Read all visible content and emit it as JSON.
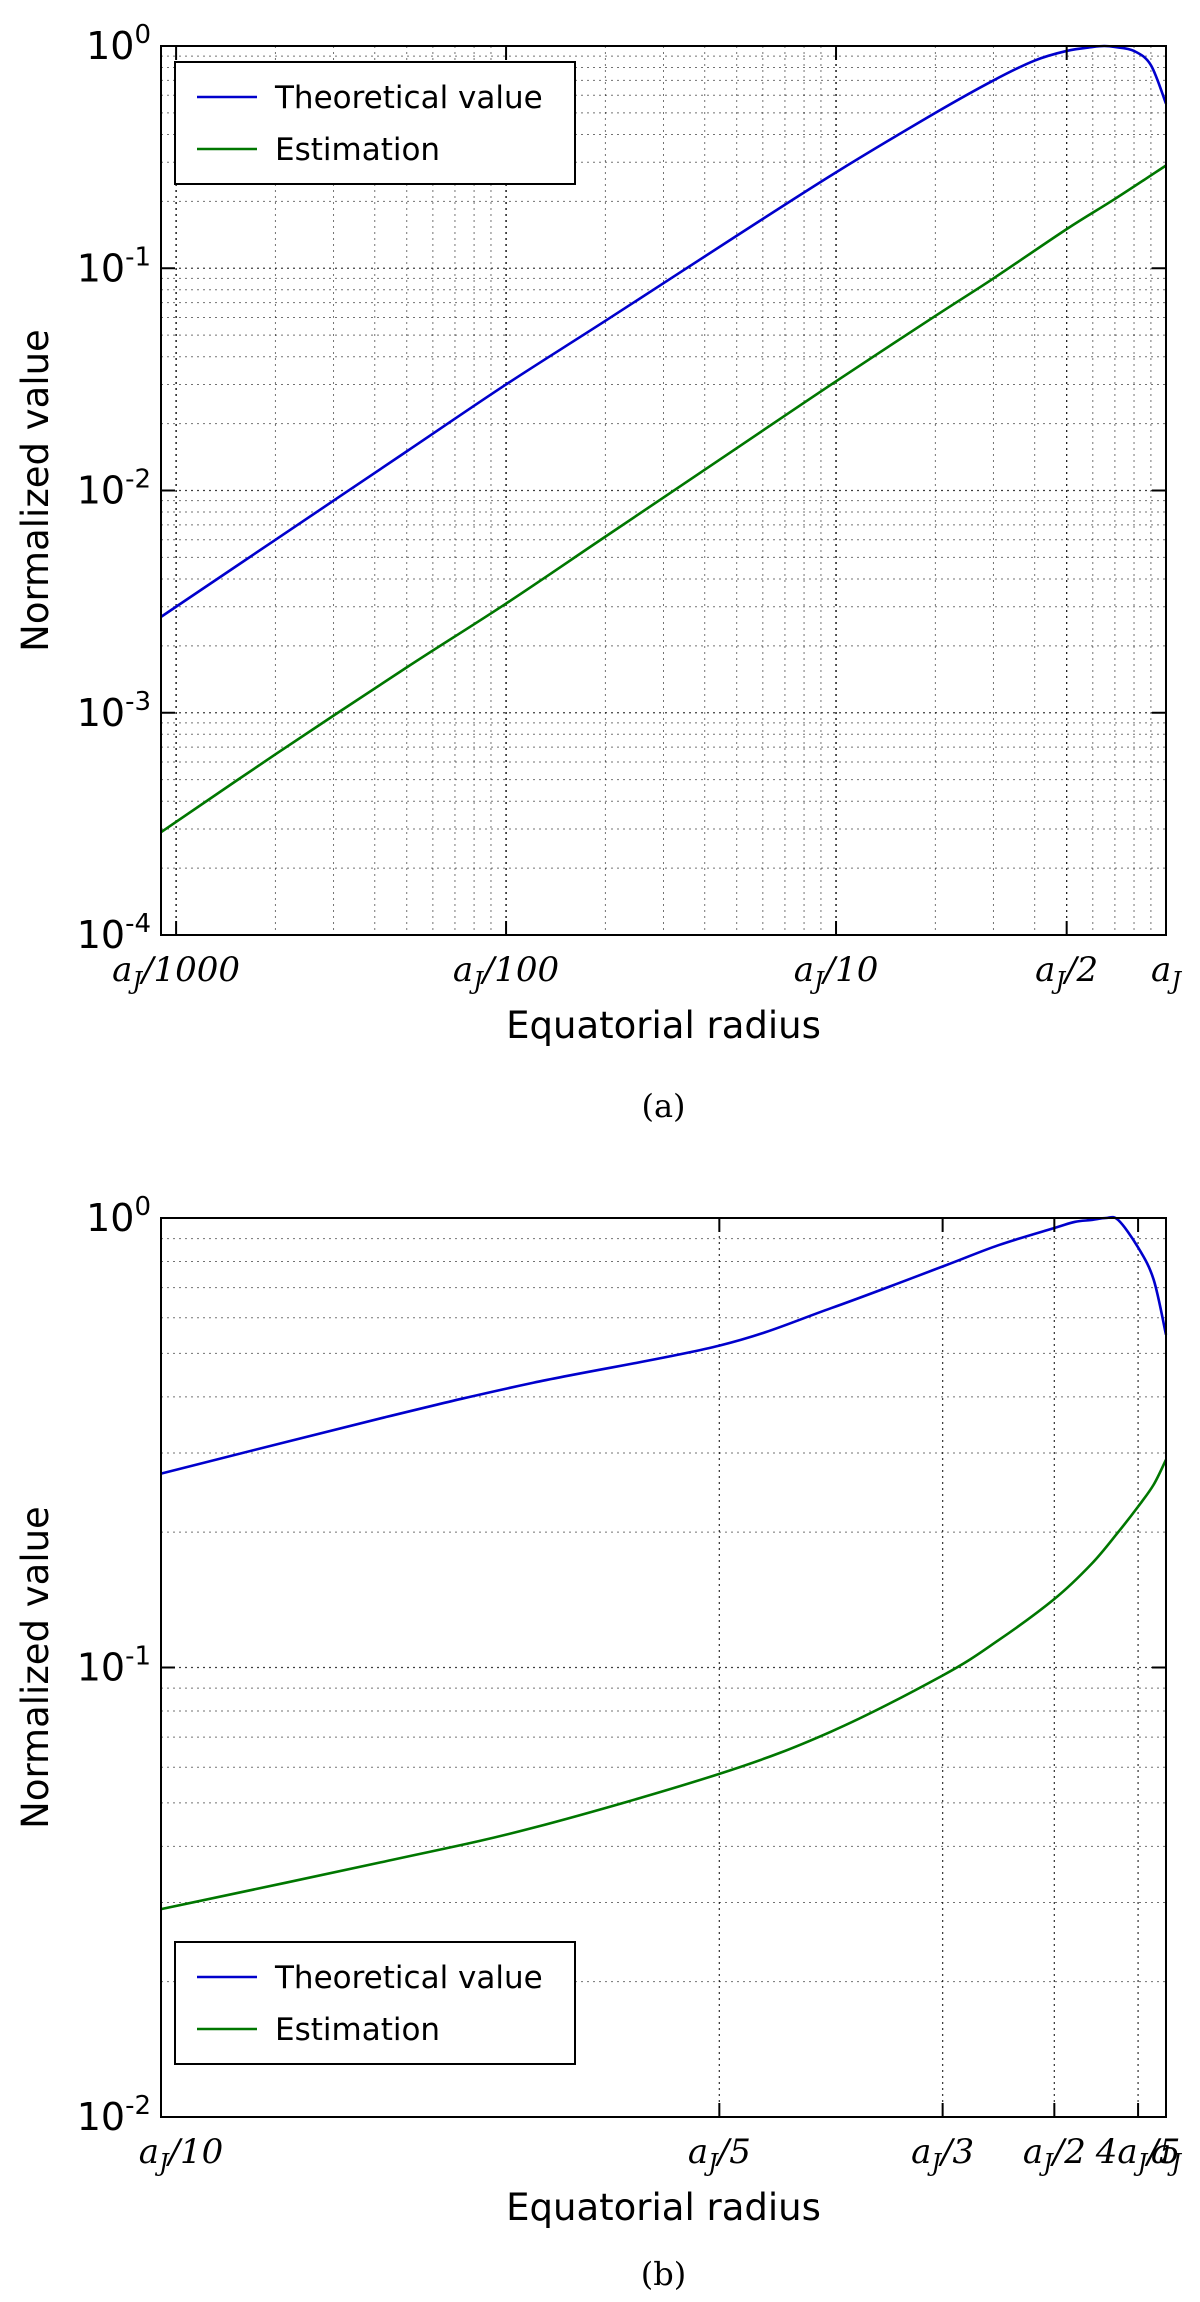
{
  "chart_data": [
    {
      "panel": "a",
      "type": "line",
      "caption": "(a)",
      "xlabel": "Equatorial radius",
      "ylabel": "Normalized value",
      "xscale": "log",
      "yscale": "log",
      "xlim": [
        0.0009,
        1.0
      ],
      "ylim": [
        0.0001,
        1.0
      ],
      "grid": true,
      "legend_position": "top-left",
      "xticks": [
        {
          "value": 0.001,
          "label": "aJ/1000"
        },
        {
          "value": 0.01,
          "label": "aJ/100"
        },
        {
          "value": 0.1,
          "label": "aJ/10"
        },
        {
          "value": 0.5,
          "label": "aJ/2"
        },
        {
          "value": 1.0,
          "label": "aJ"
        }
      ],
      "yticks": [
        {
          "value": 0.0001,
          "base": "10",
          "exp": "-4"
        },
        {
          "value": 0.001,
          "base": "10",
          "exp": "-3"
        },
        {
          "value": 0.01,
          "base": "10",
          "exp": "-2"
        },
        {
          "value": 0.1,
          "base": "10",
          "exp": "-1"
        },
        {
          "value": 1.0,
          "base": "10",
          "exp": "0"
        }
      ],
      "series": [
        {
          "name": "Theoretical value",
          "color": "#0000cc",
          "x": [
            0.0009,
            0.002,
            0.005,
            0.01,
            0.02,
            0.05,
            0.1,
            0.2,
            0.3,
            0.4,
            0.5,
            0.6,
            0.65,
            0.7,
            0.8,
            0.9,
            1.0
          ],
          "y": [
            0.0027,
            0.006,
            0.015,
            0.03,
            0.058,
            0.14,
            0.27,
            0.5,
            0.7,
            0.86,
            0.95,
            0.99,
            1.0,
            0.99,
            0.95,
            0.82,
            0.55
          ]
        },
        {
          "name": "Estimation",
          "color": "#007700",
          "x": [
            0.0009,
            0.002,
            0.005,
            0.01,
            0.02,
            0.05,
            0.1,
            0.2,
            0.3,
            0.5,
            0.7,
            1.0
          ],
          "y": [
            0.00029,
            0.00065,
            0.0016,
            0.0031,
            0.0062,
            0.0155,
            0.031,
            0.061,
            0.09,
            0.15,
            0.205,
            0.29
          ]
        }
      ]
    },
    {
      "panel": "b",
      "type": "line",
      "caption": "(b)",
      "xlabel": "Equatorial radius",
      "ylabel": "Normalized value",
      "xscale": "reciprocal",
      "yscale": "log",
      "xlim": [
        0.1,
        1.0
      ],
      "ylim": [
        0.01,
        1.0
      ],
      "grid": true,
      "legend_position": "bottom-left",
      "xticks": [
        {
          "value": 0.1,
          "label": "aJ/10"
        },
        {
          "value": 0.2,
          "label": "aJ/5"
        },
        {
          "value": 0.3333,
          "label": "aJ/3"
        },
        {
          "value": 0.5,
          "label": "aJ/2"
        },
        {
          "value": 0.8,
          "label": "4aJ/5"
        },
        {
          "value": 1.0,
          "label": "aJ"
        }
      ],
      "yticks": [
        {
          "value": 0.01,
          "base": "10",
          "exp": "-2"
        },
        {
          "value": 0.1,
          "base": "10",
          "exp": "-1"
        },
        {
          "value": 1.0,
          "base": "10",
          "exp": "0"
        }
      ],
      "series": [
        {
          "name": "Theoretical value",
          "color": "#0000cc",
          "x": [
            0.1,
            0.125,
            0.15,
            0.2,
            0.25,
            0.3333,
            0.4,
            0.5,
            0.55,
            0.6,
            0.65,
            0.7,
            0.8,
            0.9,
            1.0
          ],
          "y": [
            0.27,
            0.36,
            0.43,
            0.52,
            0.63,
            0.78,
            0.87,
            0.95,
            0.98,
            0.99,
            1.0,
            0.99,
            0.86,
            0.73,
            0.55
          ]
        },
        {
          "name": "Estimation",
          "color": "#007700",
          "x": [
            0.1,
            0.125,
            0.15,
            0.2,
            0.25,
            0.3333,
            0.4,
            0.5,
            0.6,
            0.7,
            0.8,
            0.9,
            1.0
          ],
          "y": [
            0.029,
            0.037,
            0.044,
            0.058,
            0.072,
            0.096,
            0.115,
            0.142,
            0.17,
            0.2,
            0.228,
            0.255,
            0.29
          ]
        }
      ]
    }
  ]
}
